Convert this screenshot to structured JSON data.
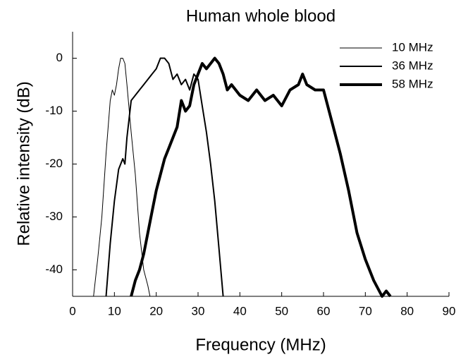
{
  "chart_data": {
    "type": "line",
    "title": "Human whole blood",
    "xlabel": "Frequency (MHz)",
    "ylabel": "Relative intensity (dB)",
    "xlim": [
      0,
      90
    ],
    "xticks": [
      0,
      10,
      20,
      30,
      40,
      50,
      60,
      70,
      80,
      90
    ],
    "ylim": [
      -45,
      5
    ],
    "yticks": [
      0,
      -10,
      -20,
      -30,
      -40
    ],
    "legend": "top-right",
    "series": [
      {
        "name": "10 MHz",
        "color": "#000000",
        "width": 1,
        "x": [
          5,
          6,
          7,
          8,
          9,
          9.5,
          10,
          10.5,
          11,
          11.5,
          12,
          12.5,
          13,
          14,
          15,
          16,
          17,
          18,
          18.5
        ],
        "values": [
          -45,
          -38,
          -30,
          -18,
          -8,
          -6,
          -7,
          -5,
          -2,
          0,
          0,
          -1,
          -5,
          -14,
          -22,
          -33,
          -40,
          -43,
          -45
        ]
      },
      {
        "name": "36 MHz",
        "color": "#000000",
        "width": 2,
        "x": [
          8,
          9,
          10,
          11,
          12,
          12.5,
          13,
          14,
          15,
          16,
          17,
          18,
          19,
          20,
          21,
          22,
          23,
          24,
          25,
          26,
          27,
          28,
          29,
          30,
          31,
          32,
          33,
          34,
          35,
          36
        ],
        "values": [
          -45,
          -35,
          -27,
          -21,
          -19,
          -20,
          -15,
          -8,
          -7,
          -6,
          -5,
          -4,
          -3,
          -2,
          0,
          0,
          -1,
          -4,
          -3,
          -5,
          -4,
          -6,
          -3,
          -4,
          -9,
          -14,
          -20,
          -27,
          -36,
          -45
        ]
      },
      {
        "name": "58 MHz",
        "color": "#000000",
        "width": 4,
        "x": [
          14,
          15,
          16,
          17,
          18,
          19,
          20,
          21,
          22,
          23,
          24,
          25,
          26,
          27,
          28,
          29,
          30,
          31,
          32,
          33,
          34,
          35,
          36,
          37,
          38,
          40,
          42,
          44,
          46,
          48,
          50,
          52,
          54,
          55,
          56,
          58,
          60,
          62,
          64,
          66,
          68,
          70,
          72,
          74,
          75,
          76
        ],
        "values": [
          -45,
          -42,
          -40,
          -37,
          -33,
          -29,
          -25,
          -22,
          -19,
          -17,
          -15,
          -13,
          -8,
          -10,
          -9,
          -5,
          -3,
          -1,
          -2,
          -1,
          0,
          -1,
          -3,
          -6,
          -5,
          -7,
          -8,
          -6,
          -8,
          -7,
          -9,
          -6,
          -5,
          -3,
          -5,
          -6,
          -6,
          -12,
          -18,
          -25,
          -33,
          -38,
          -42,
          -45,
          -44,
          -45
        ]
      }
    ]
  }
}
